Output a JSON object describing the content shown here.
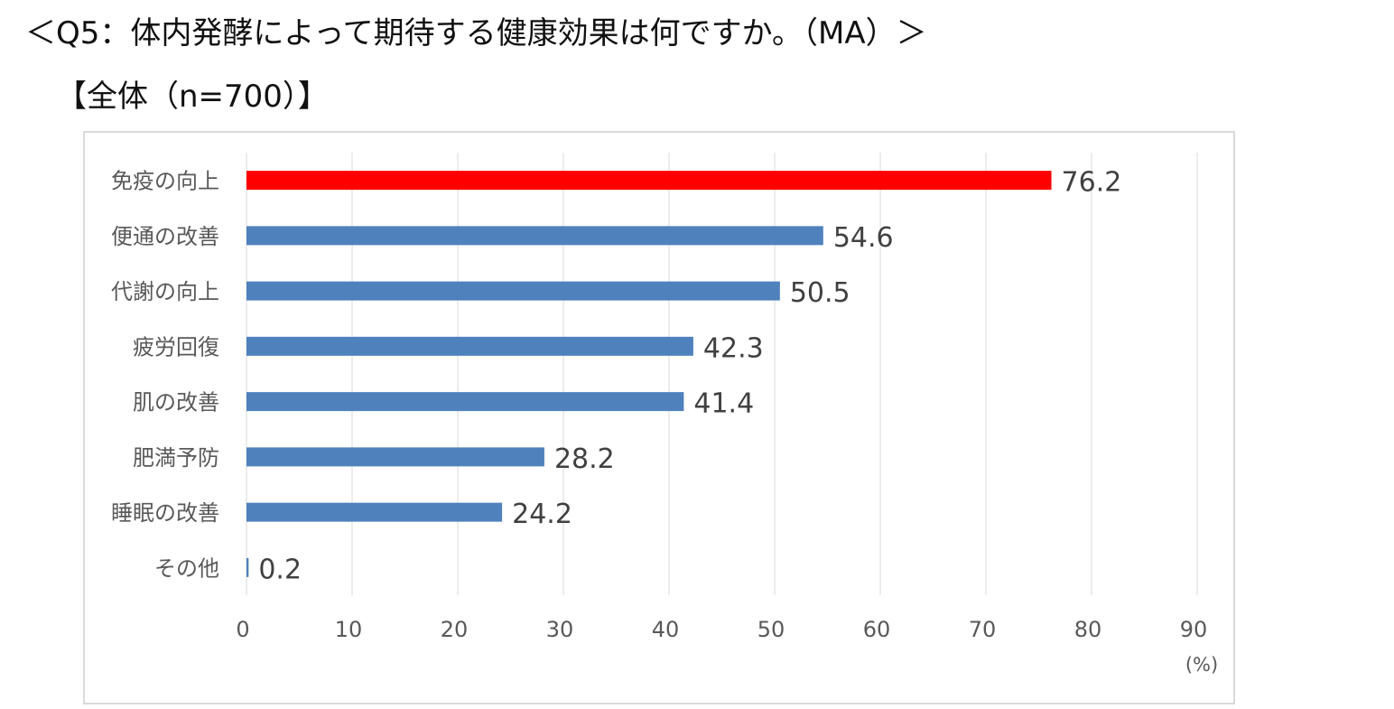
{
  "header": {
    "title": "＜Q5：体内発酵によって期待する健康効果は何ですか。（MA）＞",
    "subtitle": "【全体（n=700）】"
  },
  "chart_data": {
    "type": "bar",
    "orientation": "horizontal",
    "categories": [
      "免疫の向上",
      "便通の改善",
      "代謝の向上",
      "疲労回復",
      "肌の改善",
      "肥満予防",
      "睡眠の改善",
      "その他"
    ],
    "values": [
      76.2,
      54.6,
      50.5,
      42.3,
      41.4,
      28.2,
      24.2,
      0.2
    ],
    "value_labels": [
      "76.2",
      "54.6",
      "50.5",
      "42.3",
      "41.4",
      "28.2",
      "24.2",
      "0.2"
    ],
    "xlim": [
      0,
      90
    ],
    "x_ticks": [
      "0",
      "10",
      "20",
      "30",
      "40",
      "50",
      "60",
      "70",
      "80",
      "90"
    ],
    "x_unit": "(%)",
    "grid": "vertical",
    "colors": {
      "highlight": "#ff0000",
      "bar": "#4f81bd",
      "grid": "#d9d9d9"
    },
    "highlight_index": 0
  }
}
